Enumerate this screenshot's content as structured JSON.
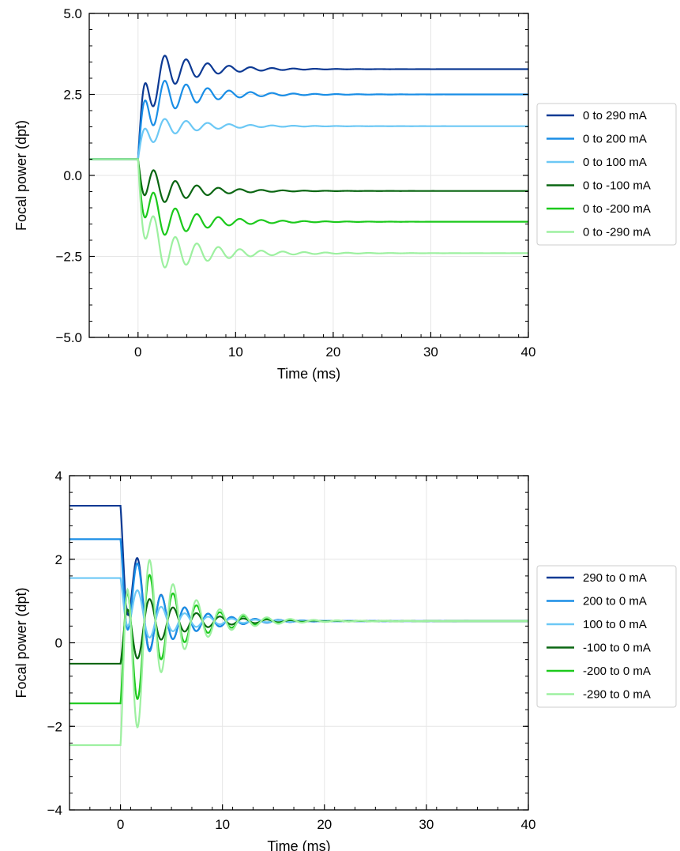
{
  "chart_data": [
    {
      "type": "line",
      "title": "",
      "xlabel": "Time (ms)",
      "ylabel": "Focal power (dpt)",
      "xlim": [
        -5,
        40
      ],
      "ylim": [
        -5,
        5
      ],
      "xticks": [
        0,
        10,
        20,
        30,
        40
      ],
      "xtick_labels": [
        "0",
        "10",
        "20",
        "30",
        "40"
      ],
      "yticks": [
        -5,
        -2.5,
        0,
        2.5,
        5
      ],
      "ytick_labels": [
        "−5.0",
        "−2.5",
        "0.0",
        "2.5",
        "5.0"
      ],
      "grid": true,
      "legend_position": "right",
      "step_time_ms": 0,
      "series": [
        {
          "name": "0 to 290 mA",
          "color": "#0d3a94",
          "start": 0.5,
          "end": 3.28,
          "amplitude": 1.2,
          "period_ms": 2.2,
          "damping_ms": 4.0,
          "dip": -0.6
        },
        {
          "name": "0 to 200 mA",
          "color": "#1a8ee6",
          "start": 0.5,
          "end": 2.5,
          "amplitude": 1.05,
          "period_ms": 2.2,
          "damping_ms": 4.5,
          "dip": -0.5
        },
        {
          "name": "0 to 100 mA",
          "color": "#6cc8f5",
          "start": 0.5,
          "end": 1.52,
          "amplitude": 0.55,
          "period_ms": 2.2,
          "damping_ms": 4.5,
          "dip": -0.3
        },
        {
          "name": "0 to -100 mA",
          "color": "#0a6612",
          "start": 0.5,
          "end": -0.48,
          "amplitude": 0.85,
          "period_ms": 2.2,
          "damping_ms": 4.0,
          "dip": 0.4
        },
        {
          "name": "0 to -200 mA",
          "color": "#1cc91c",
          "start": 0.5,
          "end": -1.43,
          "amplitude": 1.0,
          "period_ms": 2.2,
          "damping_ms": 4.5,
          "dip": 0.7
        },
        {
          "name": "0 to -290 mA",
          "color": "#9df0a0",
          "start": 0.5,
          "end": -2.4,
          "amplitude": 1.1,
          "period_ms": 2.2,
          "damping_ms": 5.0,
          "dip": 0.9
        }
      ]
    },
    {
      "type": "line",
      "title": "",
      "xlabel": "Time (ms)",
      "ylabel": "Focal power (dpt)",
      "xlim": [
        -5,
        40
      ],
      "ylim": [
        -4,
        4
      ],
      "xticks": [
        0,
        10,
        20,
        30,
        40
      ],
      "xtick_labels": [
        "0",
        "10",
        "20",
        "30",
        "40"
      ],
      "yticks": [
        -4,
        -2,
        0,
        2,
        4
      ],
      "ytick_labels": [
        "−4",
        "−2",
        "0",
        "2",
        "4"
      ],
      "grid": true,
      "legend_position": "right",
      "step_time_ms": 0,
      "series": [
        {
          "name": "290 to 0 mA",
          "color": "#0d3a94",
          "start": 3.28,
          "end": 0.52,
          "amplitude": 1.9,
          "period_ms": 2.3,
          "damping_ms": 3.8,
          "dip": 0.0
        },
        {
          "name": "200 to 0 mA",
          "color": "#1a8ee6",
          "start": 2.48,
          "end": 0.52,
          "amplitude": 1.9,
          "period_ms": 2.3,
          "damping_ms": 3.8,
          "dip": 0.0
        },
        {
          "name": "100 to 0 mA",
          "color": "#6cc8f5",
          "start": 1.55,
          "end": 0.52,
          "amplitude": 1.0,
          "period_ms": 2.3,
          "damping_ms": 4.0,
          "dip": 0.0
        },
        {
          "name": "-100 to 0 mA",
          "color": "#0a6612",
          "start": -0.5,
          "end": 0.52,
          "amplitude": 1.25,
          "period_ms": 2.3,
          "damping_ms": 4.2,
          "dip": 0.0
        },
        {
          "name": "-200 to 0 mA",
          "color": "#1cc91c",
          "start": -1.45,
          "end": 0.52,
          "amplitude": 2.7,
          "period_ms": 2.3,
          "damping_ms": 4.0,
          "dip": 0.0
        },
        {
          "name": "-290 to 0 mA",
          "color": "#9df0a0",
          "start": -2.45,
          "end": 0.52,
          "amplitude": 3.6,
          "period_ms": 2.3,
          "damping_ms": 4.0,
          "dip": 0.0
        }
      ]
    }
  ]
}
